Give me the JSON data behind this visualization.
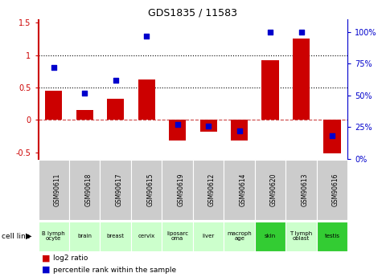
{
  "title": "GDS1835 / 11583",
  "categories": [
    "GSM90611",
    "GSM90618",
    "GSM90617",
    "GSM90615",
    "GSM90619",
    "GSM90612",
    "GSM90614",
    "GSM90620",
    "GSM90613",
    "GSM90616"
  ],
  "cell_lines": [
    "B lymph\nocyte",
    "brain",
    "breast",
    "cervix",
    "liposarc\noma",
    "liver",
    "macroph\nage",
    "skin",
    "T lymph\noblast",
    "testis"
  ],
  "log2_ratio": [
    0.45,
    0.15,
    0.32,
    0.62,
    -0.32,
    -0.18,
    -0.32,
    0.92,
    1.25,
    -0.52
  ],
  "percentile_rank": [
    72,
    52,
    62,
    97,
    27,
    26,
    22,
    100,
    100,
    18
  ],
  "bar_color": "#cc0000",
  "dot_color": "#0000cc",
  "ylim_left": [
    -0.6,
    1.55
  ],
  "ylim_right": [
    0,
    110
  ],
  "yticks_left": [
    -0.5,
    0.0,
    0.5,
    1.0,
    1.5
  ],
  "yticks_right": [
    0,
    25,
    50,
    75,
    100
  ],
  "hline_y": [
    0.0,
    0.5,
    1.0
  ],
  "hline_styles": [
    "--",
    ":",
    ":"
  ],
  "hline_colors": [
    "#cc4444",
    "#000000",
    "#000000"
  ],
  "cell_line_bg_normal": "#ccffcc",
  "cell_line_bg_special": "#33cc33",
  "special_cell_lines": [
    7,
    9
  ],
  "gsm_label_bg": "#cccccc",
  "bar_width": 0.55
}
